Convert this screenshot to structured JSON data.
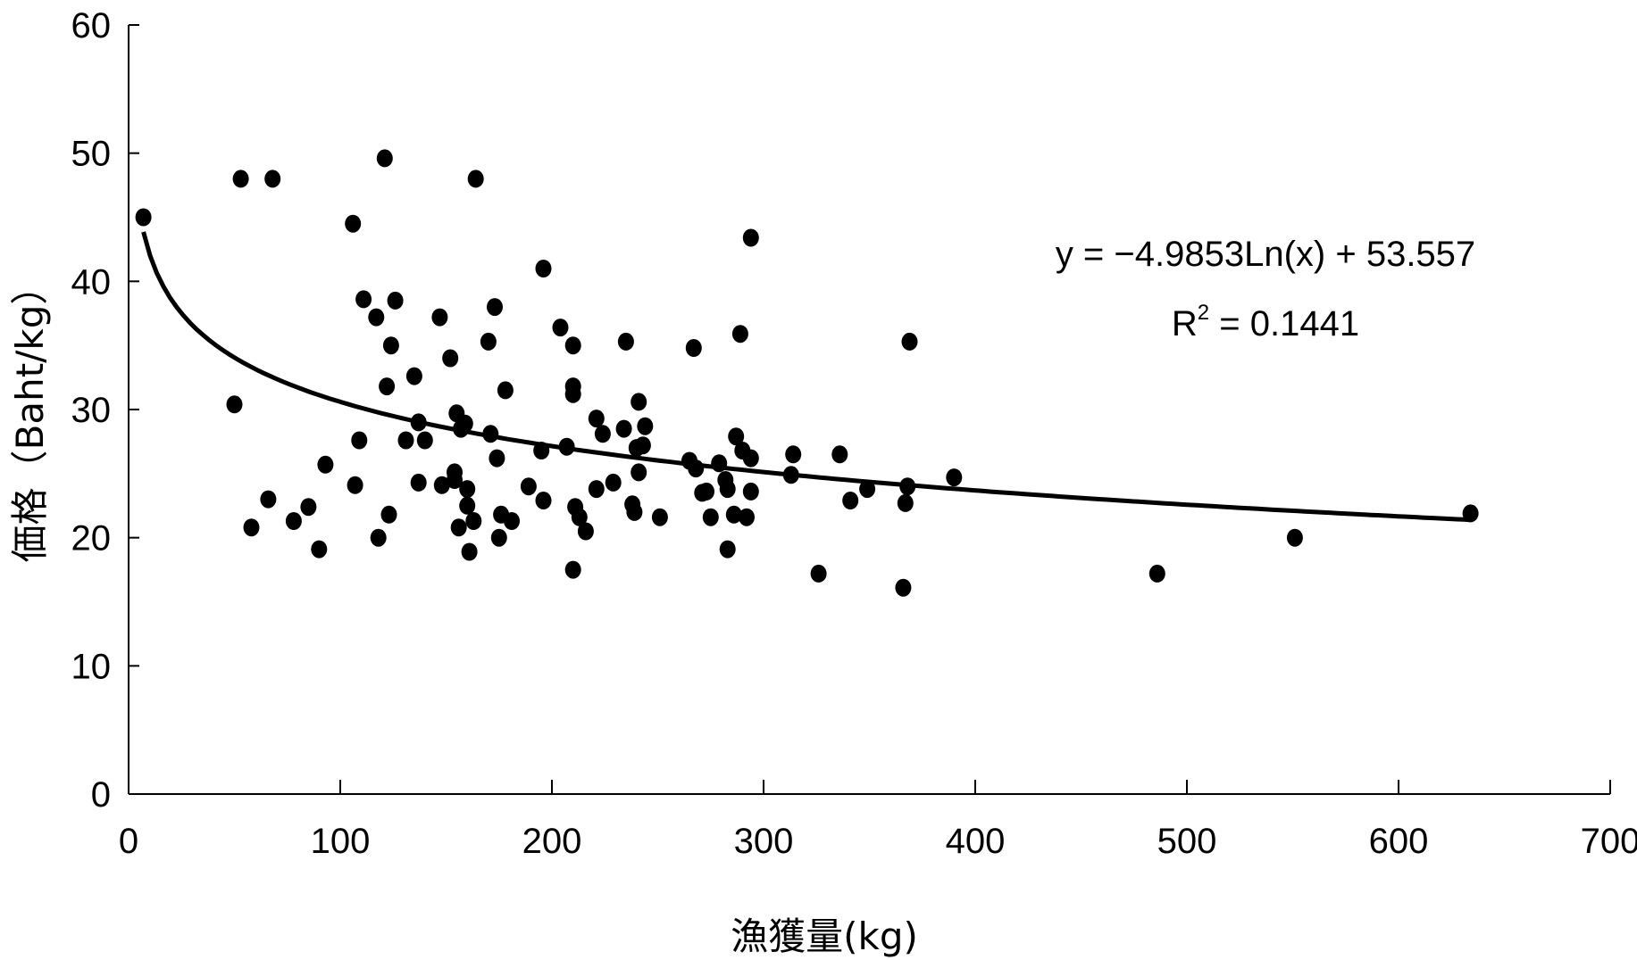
{
  "chart_data": {
    "type": "scatter",
    "xlabel": "漁獲量(kg)",
    "ylabel": "価格（Baht/kg）",
    "xlim": [
      0,
      700
    ],
    "ylim": [
      0,
      60
    ],
    "xticks": [
      0,
      100,
      200,
      300,
      400,
      500,
      600,
      700
    ],
    "yticks": [
      0,
      10,
      20,
      30,
      40,
      50,
      60
    ],
    "xtick_labels": [
      "0",
      "100",
      "200",
      "300",
      "400",
      "500",
      "600",
      "700"
    ],
    "ytick_labels": [
      "0",
      "10",
      "20",
      "30",
      "40",
      "50",
      "60"
    ],
    "grid": false,
    "legend": "none",
    "annotations": {
      "equation": "y = −4.9853Ln(x) + 53.557",
      "r2_prefix": "R",
      "r2_sup": "2",
      "r2_value": " = 0.1441"
    },
    "trendline": {
      "type": "logarithmic",
      "a": -4.9853,
      "b": 53.557,
      "x_range": [
        7,
        634
      ]
    },
    "points": [
      [
        7,
        45
      ],
      [
        53,
        48
      ],
      [
        68,
        48
      ],
      [
        50,
        30.4
      ],
      [
        58,
        20.8
      ],
      [
        66,
        23
      ],
      [
        78,
        21.3
      ],
      [
        85,
        22.4
      ],
      [
        90,
        19.1
      ],
      [
        93,
        25.7
      ],
      [
        106,
        44.5
      ],
      [
        107,
        24.1
      ],
      [
        109,
        27.6
      ],
      [
        111,
        38.6
      ],
      [
        117,
        37.2
      ],
      [
        118,
        20
      ],
      [
        121,
        49.6
      ],
      [
        122,
        31.8
      ],
      [
        123,
        21.8
      ],
      [
        124,
        35
      ],
      [
        126,
        38.5
      ],
      [
        131,
        27.6
      ],
      [
        135,
        32.6
      ],
      [
        137,
        29
      ],
      [
        137,
        24.3
      ],
      [
        140,
        27.6
      ],
      [
        147,
        37.2
      ],
      [
        148,
        24.1
      ],
      [
        152,
        34
      ],
      [
        154,
        24.5
      ],
      [
        154,
        25.1
      ],
      [
        155,
        29.7
      ],
      [
        156,
        20.8
      ],
      [
        157,
        28.5
      ],
      [
        159,
        28.9
      ],
      [
        160,
        23.8
      ],
      [
        160,
        22.5
      ],
      [
        161,
        18.9
      ],
      [
        163,
        21.3
      ],
      [
        164,
        48
      ],
      [
        170,
        35.3
      ],
      [
        171,
        28.1
      ],
      [
        173,
        38
      ],
      [
        174,
        26.2
      ],
      [
        175,
        20
      ],
      [
        176,
        21.8
      ],
      [
        178,
        31.5
      ],
      [
        181,
        21.3
      ],
      [
        189,
        24
      ],
      [
        195,
        26.8
      ],
      [
        196,
        22.9
      ],
      [
        196,
        41
      ],
      [
        204,
        36.4
      ],
      [
        207,
        27.1
      ],
      [
        210,
        35
      ],
      [
        210,
        31.8
      ],
      [
        210,
        31.2
      ],
      [
        210,
        17.5
      ],
      [
        211,
        22.4
      ],
      [
        213,
        21.6
      ],
      [
        216,
        20.5
      ],
      [
        221,
        29.3
      ],
      [
        221,
        23.8
      ],
      [
        224,
        28.1
      ],
      [
        229,
        24.3
      ],
      [
        234,
        28.5
      ],
      [
        235,
        35.3
      ],
      [
        238,
        22.6
      ],
      [
        239,
        22
      ],
      [
        240,
        27
      ],
      [
        241,
        30.6
      ],
      [
        241,
        25.1
      ],
      [
        243,
        27.2
      ],
      [
        244,
        28.7
      ],
      [
        251,
        21.6
      ],
      [
        265,
        26
      ],
      [
        267,
        34.8
      ],
      [
        268,
        25.4
      ],
      [
        271,
        23.5
      ],
      [
        273,
        23.6
      ],
      [
        275,
        21.6
      ],
      [
        279,
        25.8
      ],
      [
        282,
        24.5
      ],
      [
        283,
        23.8
      ],
      [
        283,
        19.1
      ],
      [
        286,
        21.8
      ],
      [
        287,
        27.9
      ],
      [
        289,
        35.9
      ],
      [
        290,
        26.8
      ],
      [
        292,
        21.6
      ],
      [
        294,
        43.4
      ],
      [
        294,
        26.2
      ],
      [
        294,
        23.6
      ],
      [
        313,
        24.9
      ],
      [
        314,
        26.5
      ],
      [
        326,
        17.2
      ],
      [
        336,
        26.5
      ],
      [
        341,
        22.9
      ],
      [
        349,
        23.8
      ],
      [
        366,
        16.1
      ],
      [
        367,
        22.7
      ],
      [
        368,
        24
      ],
      [
        369,
        35.3
      ],
      [
        390,
        24.7
      ],
      [
        486,
        17.2
      ],
      [
        551,
        20
      ],
      [
        634,
        21.9
      ]
    ]
  }
}
